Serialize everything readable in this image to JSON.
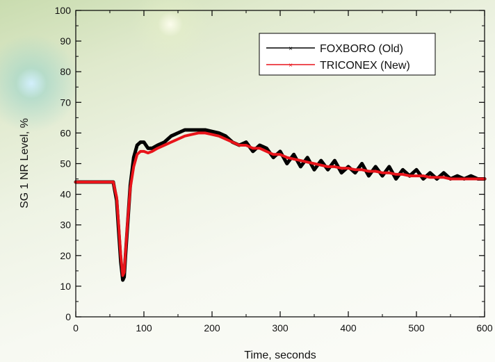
{
  "chart_data": {
    "type": "line",
    "xlabel": "Time, seconds",
    "ylabel": "SG 1 NR Level, %",
    "xlim": [
      0,
      600
    ],
    "ylim": [
      0,
      100
    ],
    "x_ticks": [
      "0",
      "100",
      "200",
      "300",
      "400",
      "500",
      "600"
    ],
    "y_ticks": [
      "0",
      "10",
      "20",
      "30",
      "40",
      "50",
      "60",
      "70",
      "80",
      "90",
      "100"
    ],
    "grid": false,
    "legend_position": "top-right",
    "series": [
      {
        "name": "FOXBORO (Old)",
        "color": "#000000",
        "x": [
          0,
          55,
          60,
          63,
          66,
          69,
          71,
          73,
          76,
          80,
          85,
          90,
          95,
          100,
          106,
          112,
          120,
          130,
          140,
          150,
          160,
          170,
          180,
          190,
          200,
          210,
          220,
          230,
          240,
          250,
          260,
          270,
          280,
          290,
          300,
          310,
          320,
          330,
          340,
          350,
          360,
          370,
          380,
          390,
          400,
          410,
          420,
          430,
          440,
          450,
          460,
          470,
          480,
          490,
          500,
          510,
          520,
          530,
          540,
          550,
          560,
          570,
          580,
          590,
          600
        ],
        "y": [
          44,
          44,
          38,
          28,
          18,
          12,
          13,
          20,
          30,
          43,
          52,
          56,
          57,
          57,
          55,
          55,
          56,
          57,
          59,
          60,
          61,
          61,
          61,
          61,
          60.5,
          60,
          59,
          57,
          56,
          57,
          54,
          56,
          55,
          52,
          54,
          50,
          53,
          49,
          52,
          48,
          51,
          48,
          51,
          47,
          49,
          47,
          50,
          46,
          49,
          46,
          49,
          45,
          48,
          46,
          48,
          45,
          47,
          45,
          47,
          45,
          46,
          45,
          46,
          45,
          45
        ]
      },
      {
        "name": "TRICONEX (New)",
        "color": "#e8141a",
        "x": [
          0,
          55,
          60,
          63,
          66,
          69,
          71,
          73,
          76,
          80,
          85,
          90,
          95,
          100,
          106,
          112,
          120,
          130,
          140,
          150,
          160,
          170,
          180,
          190,
          200,
          210,
          220,
          230,
          240,
          250,
          260,
          270,
          280,
          290,
          300,
          310,
          320,
          330,
          340,
          350,
          360,
          370,
          380,
          390,
          400,
          410,
          420,
          430,
          440,
          450,
          460,
          470,
          480,
          490,
          500,
          510,
          520,
          530,
          540,
          550,
          560,
          570,
          580,
          590,
          600
        ],
        "y": [
          44,
          44,
          39,
          30,
          20,
          13.5,
          14.5,
          21,
          31,
          42,
          49,
          53,
          54,
          54,
          53.5,
          54,
          55,
          56,
          57,
          58,
          59,
          59.5,
          60,
          60,
          59.5,
          59,
          58,
          57,
          56,
          56,
          55,
          55,
          54,
          53,
          53,
          52,
          51.5,
          51,
          50.5,
          50,
          49.5,
          49,
          49,
          48.5,
          48.5,
          48,
          48,
          47.5,
          47.5,
          47,
          47,
          46.5,
          46.5,
          46,
          46,
          46,
          45.5,
          45.5,
          45.5,
          45,
          45,
          45,
          45,
          45,
          45
        ]
      }
    ]
  }
}
